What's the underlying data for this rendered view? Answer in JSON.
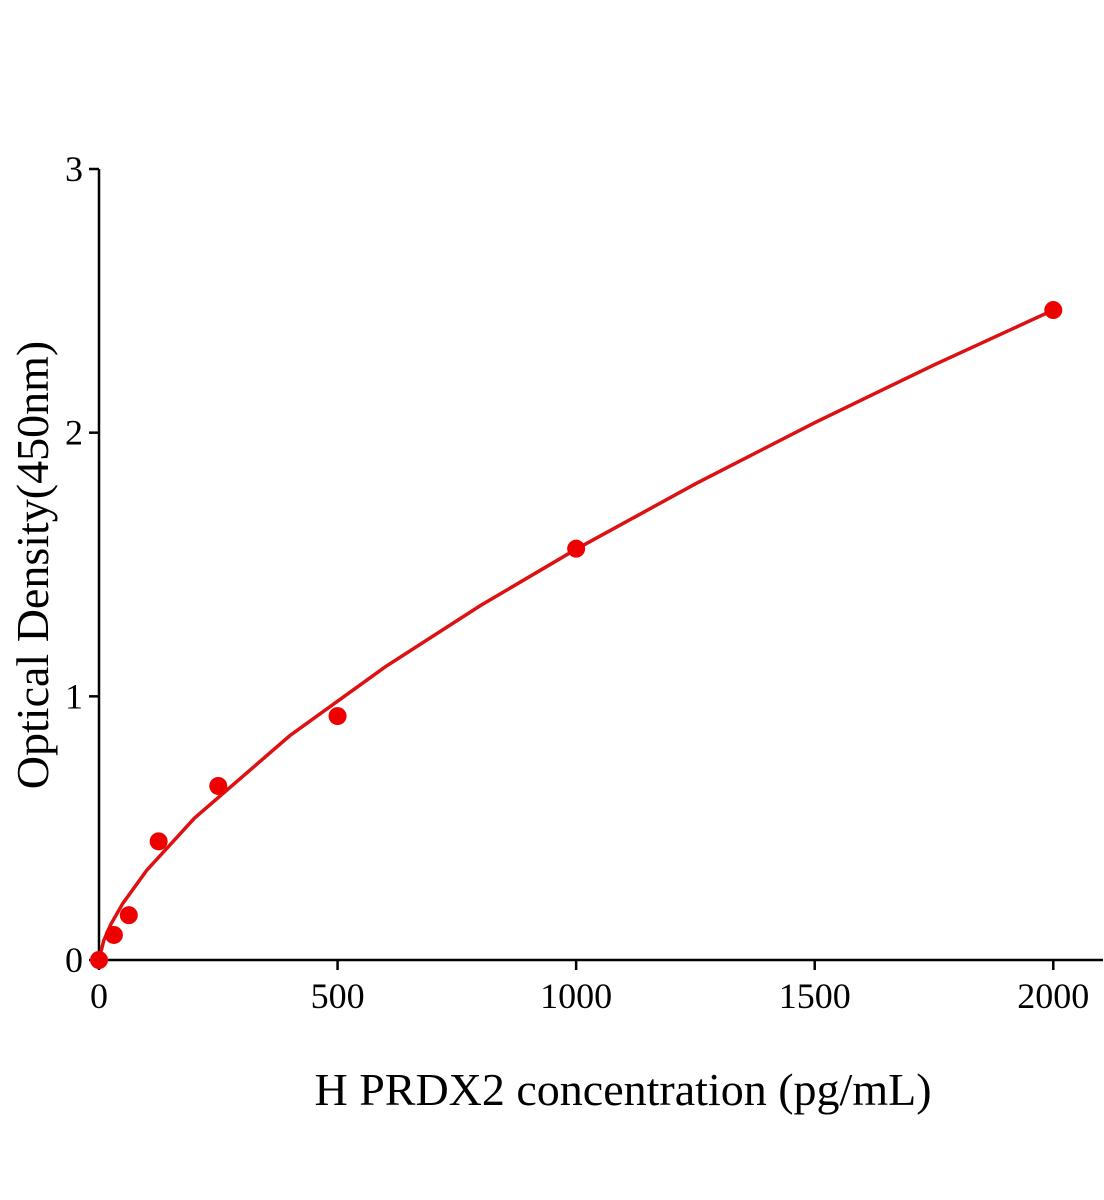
{
  "chart_data": {
    "type": "scatter",
    "x_label": "H PRDX2 concentration (pg/mL)",
    "y_label": "Optical Density(450nm)",
    "xlim": [
      0,
      2100
    ],
    "xticks": [
      0,
      500,
      1000,
      1500,
      2000
    ],
    "ylim": [
      0,
      3
    ],
    "yticks": [
      0,
      1,
      2,
      3
    ],
    "grid": false,
    "series": [
      {
        "type": "scatter",
        "color": "#ee0000",
        "x": [
          0,
          31.25,
          62.5,
          125,
          250,
          500,
          1000,
          2000
        ],
        "values": [
          0,
          0.095,
          0.17,
          0.45,
          0.66,
          0.925,
          1.56,
          2.465
        ]
      },
      {
        "type": "line",
        "color": "#dd1111",
        "x": [
          0,
          10,
          25,
          50,
          100,
          200,
          400,
          600,
          800,
          1000,
          1250,
          1500,
          1750,
          2000
        ],
        "values": [
          0,
          0.074,
          0.136,
          0.215,
          0.34,
          0.538,
          0.851,
          1.112,
          1.345,
          1.558,
          1.806,
          2.038,
          2.257,
          2.465
        ]
      }
    ]
  }
}
